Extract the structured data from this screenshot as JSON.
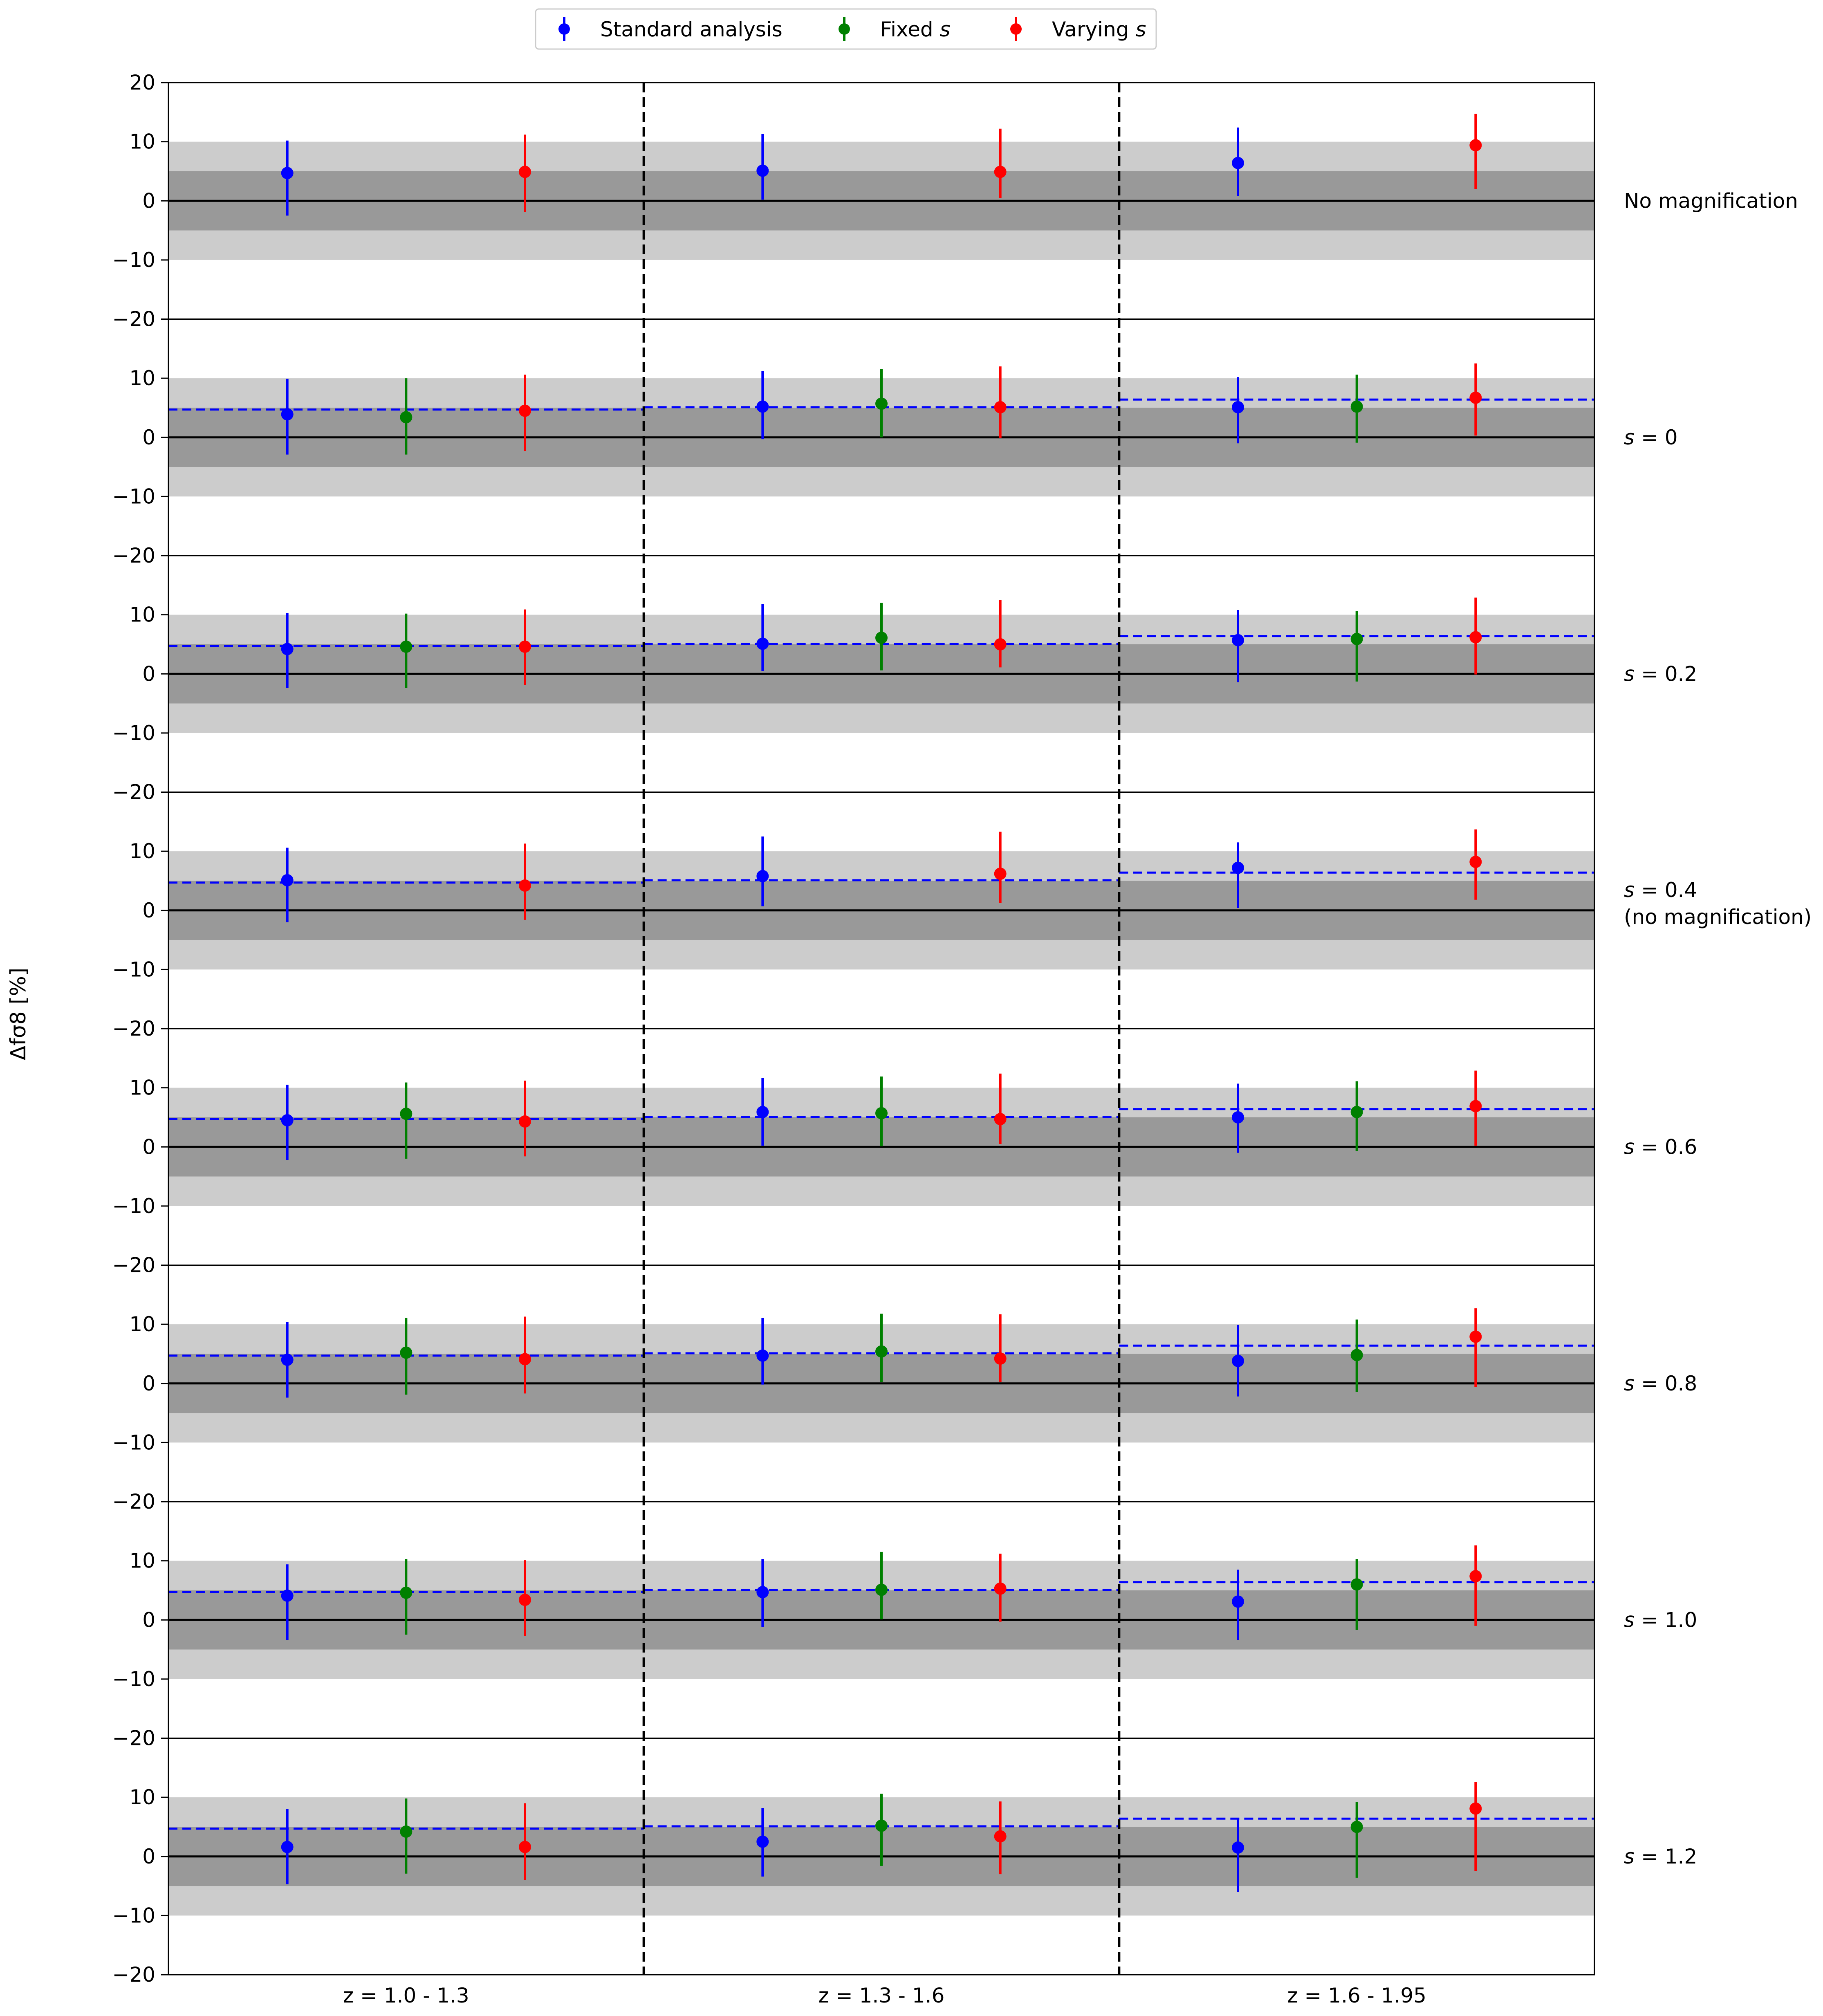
{
  "chart_data": {
    "type": "scatter",
    "ylabel": "Δfσ8 [%]",
    "xlabel": "",
    "ylim": [
      -20,
      20
    ],
    "yticks": [
      20,
      10,
      0,
      -10,
      -20
    ],
    "ytick_labels": [
      "20",
      "10",
      "0",
      "−10",
      "−20"
    ],
    "bands": [
      {
        "range": [
          -10,
          10
        ],
        "color": "#cccccc"
      },
      {
        "range": [
          -5,
          5
        ],
        "color": "#999999"
      }
    ],
    "zero_line": 0,
    "legend": {
      "placement": "top-center",
      "entries": [
        {
          "label": "Standard analysis",
          "color": "#0000ff"
        },
        {
          "label": "Fixed s",
          "color": "#008000"
        },
        {
          "label": "Varying s",
          "color": "#ff0000"
        }
      ]
    },
    "redshift_bins": [
      "z = 1.0 - 1.3",
      "z = 1.3 - 1.6",
      "z = 1.6 - 1.95"
    ],
    "series_order": [
      "Standard analysis",
      "Fixed s",
      "Varying s"
    ],
    "colors": {
      "Standard analysis": "#0000ff",
      "Fixed s": "#008000",
      "Varying s": "#ff0000"
    },
    "reference_line": {
      "style": "dashed",
      "color": "#0000ff",
      "note": "Standard analysis value of the no-magnification row"
    },
    "panels": [
      {
        "label": [
          "No magnification"
        ],
        "reference": null,
        "bins": [
          {
            "points": [
              {
                "series": "Standard analysis",
                "y": 4.7,
                "lo": -2.5,
                "hi": 10.2
              },
              null,
              {
                "series": "Varying s",
                "y": 4.9,
                "lo": -1.9,
                "hi": 11.2
              }
            ]
          },
          {
            "points": [
              {
                "series": "Standard analysis",
                "y": 5.1,
                "lo": 0.2,
                "hi": 11.3
              },
              null,
              {
                "series": "Varying s",
                "y": 4.9,
                "lo": 0.5,
                "hi": 12.2
              }
            ]
          },
          {
            "points": [
              {
                "series": "Standard analysis",
                "y": 6.4,
                "lo": 0.8,
                "hi": 12.4
              },
              null,
              {
                "series": "Varying s",
                "y": 9.4,
                "lo": 2.0,
                "hi": 14.7
              }
            ]
          }
        ]
      },
      {
        "label": [
          "s = 0"
        ],
        "reference": [
          4.7,
          5.1,
          6.4
        ],
        "bins": [
          {
            "points": [
              {
                "series": "Standard analysis",
                "y": 3.9,
                "lo": -2.9,
                "hi": 9.9
              },
              {
                "series": "Fixed s",
                "y": 3.4,
                "lo": -2.9,
                "hi": 10.0
              },
              {
                "series": "Varying s",
                "y": 4.5,
                "lo": -2.3,
                "hi": 10.6
              }
            ]
          },
          {
            "points": [
              {
                "series": "Standard analysis",
                "y": 5.2,
                "lo": -0.3,
                "hi": 11.2
              },
              {
                "series": "Fixed s",
                "y": 5.7,
                "lo": 0.0,
                "hi": 11.6
              },
              {
                "series": "Varying s",
                "y": 5.1,
                "lo": -0.1,
                "hi": 12.0
              }
            ]
          },
          {
            "points": [
              {
                "series": "Standard analysis",
                "y": 5.1,
                "lo": -1.0,
                "hi": 10.2
              },
              {
                "series": "Fixed s",
                "y": 5.2,
                "lo": -0.9,
                "hi": 10.6
              },
              {
                "series": "Varying s",
                "y": 6.7,
                "lo": 0.3,
                "hi": 12.5
              }
            ]
          }
        ]
      },
      {
        "label": [
          "s = 0.2"
        ],
        "reference": [
          4.7,
          5.1,
          6.4
        ],
        "bins": [
          {
            "points": [
              {
                "series": "Standard analysis",
                "y": 4.2,
                "lo": -2.4,
                "hi": 10.3
              },
              {
                "series": "Fixed s",
                "y": 4.6,
                "lo": -2.4,
                "hi": 10.2
              },
              {
                "series": "Varying s",
                "y": 4.6,
                "lo": -1.9,
                "hi": 10.9
              }
            ]
          },
          {
            "points": [
              {
                "series": "Standard analysis",
                "y": 5.1,
                "lo": 0.5,
                "hi": 11.8
              },
              {
                "series": "Fixed s",
                "y": 6.1,
                "lo": 0.6,
                "hi": 12.0
              },
              {
                "series": "Varying s",
                "y": 5.0,
                "lo": 1.1,
                "hi": 12.5
              }
            ]
          },
          {
            "points": [
              {
                "series": "Standard analysis",
                "y": 5.7,
                "lo": -1.4,
                "hi": 10.8
              },
              {
                "series": "Fixed s",
                "y": 5.9,
                "lo": -1.3,
                "hi": 10.6
              },
              {
                "series": "Varying s",
                "y": 6.2,
                "lo": -0.1,
                "hi": 12.9
              }
            ]
          }
        ]
      },
      {
        "label": [
          "s = 0.4",
          "(no magnification)"
        ],
        "reference": [
          4.7,
          5.1,
          6.4
        ],
        "bins": [
          {
            "points": [
              {
                "series": "Standard analysis",
                "y": 5.1,
                "lo": -2.0,
                "hi": 10.6
              },
              null,
              {
                "series": "Varying s",
                "y": 4.2,
                "lo": -1.6,
                "hi": 11.3
              }
            ]
          },
          {
            "points": [
              {
                "series": "Standard analysis",
                "y": 5.8,
                "lo": 0.7,
                "hi": 12.5
              },
              null,
              {
                "series": "Varying s",
                "y": 6.2,
                "lo": 1.3,
                "hi": 13.3
              }
            ]
          },
          {
            "points": [
              {
                "series": "Standard analysis",
                "y": 7.2,
                "lo": 0.4,
                "hi": 11.5
              },
              null,
              {
                "series": "Varying s",
                "y": 8.2,
                "lo": 1.8,
                "hi": 13.7
              }
            ]
          }
        ]
      },
      {
        "label": [
          "s = 0.6"
        ],
        "reference": [
          4.7,
          5.1,
          6.4
        ],
        "bins": [
          {
            "points": [
              {
                "series": "Standard analysis",
                "y": 4.5,
                "lo": -2.2,
                "hi": 10.5
              },
              {
                "series": "Fixed s",
                "y": 5.6,
                "lo": -2.0,
                "hi": 10.9
              },
              {
                "series": "Varying s",
                "y": 4.3,
                "lo": -1.6,
                "hi": 11.2
              }
            ]
          },
          {
            "points": [
              {
                "series": "Standard analysis",
                "y": 5.9,
                "lo": 0.2,
                "hi": 11.7
              },
              {
                "series": "Fixed s",
                "y": 5.7,
                "lo": 0.1,
                "hi": 11.9
              },
              {
                "series": "Varying s",
                "y": 4.7,
                "lo": 0.5,
                "hi": 12.4
              }
            ]
          },
          {
            "points": [
              {
                "series": "Standard analysis",
                "y": 5.0,
                "lo": -1.0,
                "hi": 10.7
              },
              {
                "series": "Fixed s",
                "y": 5.9,
                "lo": -0.7,
                "hi": 11.1
              },
              {
                "series": "Varying s",
                "y": 6.9,
                "lo": 0.2,
                "hi": 12.9
              }
            ]
          }
        ]
      },
      {
        "label": [
          "s = 0.8"
        ],
        "reference": [
          4.7,
          5.1,
          6.4
        ],
        "bins": [
          {
            "points": [
              {
                "series": "Standard analysis",
                "y": 4.0,
                "lo": -2.4,
                "hi": 10.4
              },
              {
                "series": "Fixed s",
                "y": 5.2,
                "lo": -1.9,
                "hi": 11.1
              },
              {
                "series": "Varying s",
                "y": 4.1,
                "lo": -1.7,
                "hi": 11.3
              }
            ]
          },
          {
            "points": [
              {
                "series": "Standard analysis",
                "y": 4.7,
                "lo": -0.2,
                "hi": 11.1
              },
              {
                "series": "Fixed s",
                "y": 5.4,
                "lo": 0.2,
                "hi": 11.8
              },
              {
                "series": "Varying s",
                "y": 4.2,
                "lo": 0.2,
                "hi": 11.7
              }
            ]
          },
          {
            "points": [
              {
                "series": "Standard analysis",
                "y": 3.8,
                "lo": -2.2,
                "hi": 9.9
              },
              {
                "series": "Fixed s",
                "y": 4.8,
                "lo": -1.4,
                "hi": 10.8
              },
              {
                "series": "Varying s",
                "y": 7.9,
                "lo": -0.6,
                "hi": 12.7
              }
            ]
          }
        ]
      },
      {
        "label": [
          "s = 1.0"
        ],
        "reference": [
          4.7,
          5.1,
          6.4
        ],
        "bins": [
          {
            "points": [
              {
                "series": "Standard analysis",
                "y": 4.1,
                "lo": -3.4,
                "hi": 9.4
              },
              {
                "series": "Fixed s",
                "y": 4.6,
                "lo": -2.5,
                "hi": 10.3
              },
              {
                "series": "Varying s",
                "y": 3.4,
                "lo": -2.7,
                "hi": 10.1
              }
            ]
          },
          {
            "points": [
              {
                "series": "Standard analysis",
                "y": 4.7,
                "lo": -1.2,
                "hi": 10.3
              },
              {
                "series": "Fixed s",
                "y": 5.1,
                "lo": 0.1,
                "hi": 11.5
              },
              {
                "series": "Varying s",
                "y": 5.3,
                "lo": -0.3,
                "hi": 11.2
              }
            ]
          },
          {
            "points": [
              {
                "series": "Standard analysis",
                "y": 3.1,
                "lo": -3.4,
                "hi": 8.5
              },
              {
                "series": "Fixed s",
                "y": 6.0,
                "lo": -1.7,
                "hi": 10.3
              },
              {
                "series": "Varying s",
                "y": 7.4,
                "lo": -1.0,
                "hi": 12.6
              }
            ]
          }
        ]
      },
      {
        "label": [
          "s = 1.2"
        ],
        "reference": [
          4.7,
          5.1,
          6.4
        ],
        "bins": [
          {
            "points": [
              {
                "series": "Standard analysis",
                "y": 1.6,
                "lo": -4.7,
                "hi": 8.0
              },
              {
                "series": "Fixed s",
                "y": 4.2,
                "lo": -2.9,
                "hi": 9.8
              },
              {
                "series": "Varying s",
                "y": 1.6,
                "lo": -4.0,
                "hi": 9.0
              }
            ]
          },
          {
            "points": [
              {
                "series": "Standard analysis",
                "y": 2.5,
                "lo": -3.4,
                "hi": 8.2
              },
              {
                "series": "Fixed s",
                "y": 5.2,
                "lo": -1.6,
                "hi": 10.6
              },
              {
                "series": "Varying s",
                "y": 3.4,
                "lo": -3.0,
                "hi": 9.3
              }
            ]
          },
          {
            "points": [
              {
                "series": "Standard analysis",
                "y": 1.5,
                "lo": -6.0,
                "hi": 6.5
              },
              {
                "series": "Fixed s",
                "y": 5.0,
                "lo": -3.6,
                "hi": 9.2
              },
              {
                "series": "Varying s",
                "y": 8.1,
                "lo": -2.5,
                "hi": 12.6
              }
            ]
          }
        ]
      }
    ]
  }
}
